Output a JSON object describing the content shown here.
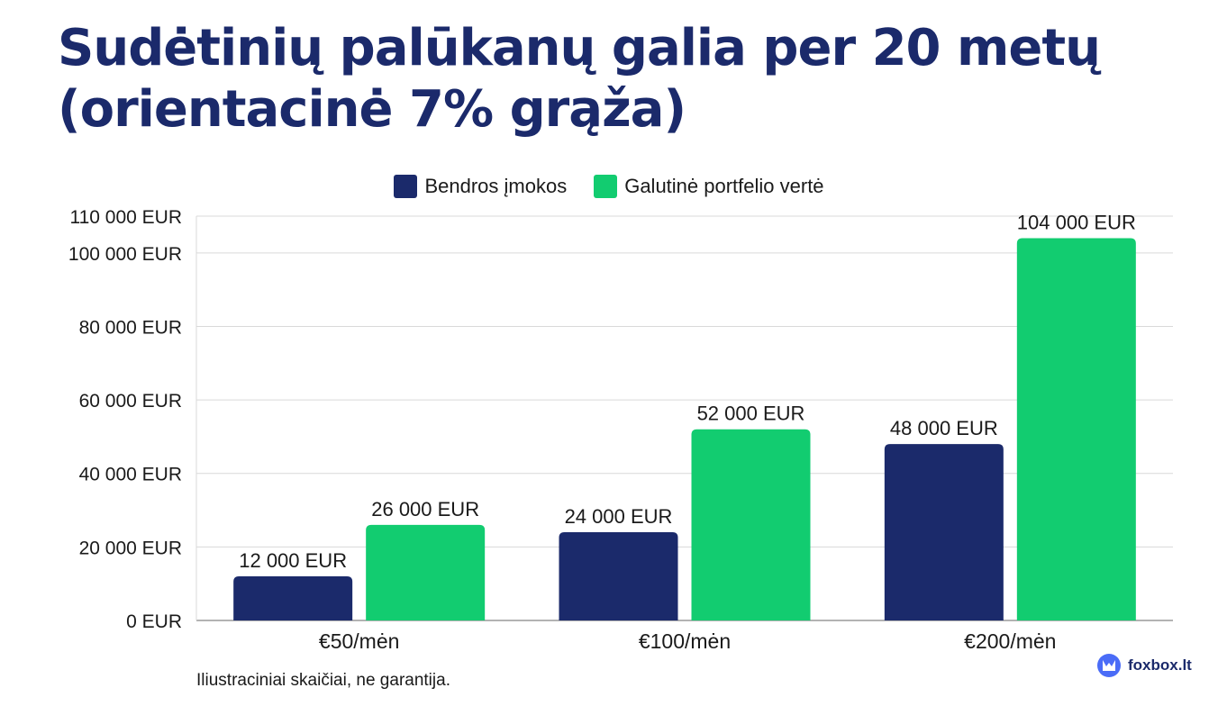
{
  "title": "Sudėtinių palūkanų galia per 20 metų (orientacinė 7% grąža)",
  "footnote": "Iliustraciniai skaičiai, ne garantija.",
  "brand": {
    "name": "foxbox.lt",
    "icon": "fox-logo-icon",
    "color": "#4a6cf7"
  },
  "chart_data": {
    "type": "bar",
    "categories": [
      "€50/mėn",
      "€100/mėn",
      "€200/mėn"
    ],
    "series": [
      {
        "name": "Bendros įmokos",
        "color": "#1b2a6b",
        "values": [
          12000,
          24000,
          48000
        ],
        "labels": [
          "12 000 EUR",
          "24 000 EUR",
          "48 000 EUR"
        ]
      },
      {
        "name": "Galutinė portfelio vertė",
        "color": "#12cc70",
        "values": [
          26000,
          52000,
          104000
        ],
        "labels": [
          "26 000 EUR",
          "52 000 EUR",
          "104 000 EUR"
        ]
      }
    ],
    "ylim": [
      0,
      110000
    ],
    "yticks": [
      0,
      20000,
      40000,
      60000,
      80000,
      100000,
      110000
    ],
    "ytick_labels": [
      "0 EUR",
      "20 000 EUR",
      "40 000 EUR",
      "60 000 EUR",
      "80 000 EUR",
      "100 000 EUR",
      "110 000 EUR"
    ],
    "grid": true,
    "legend_position": "top-center"
  }
}
